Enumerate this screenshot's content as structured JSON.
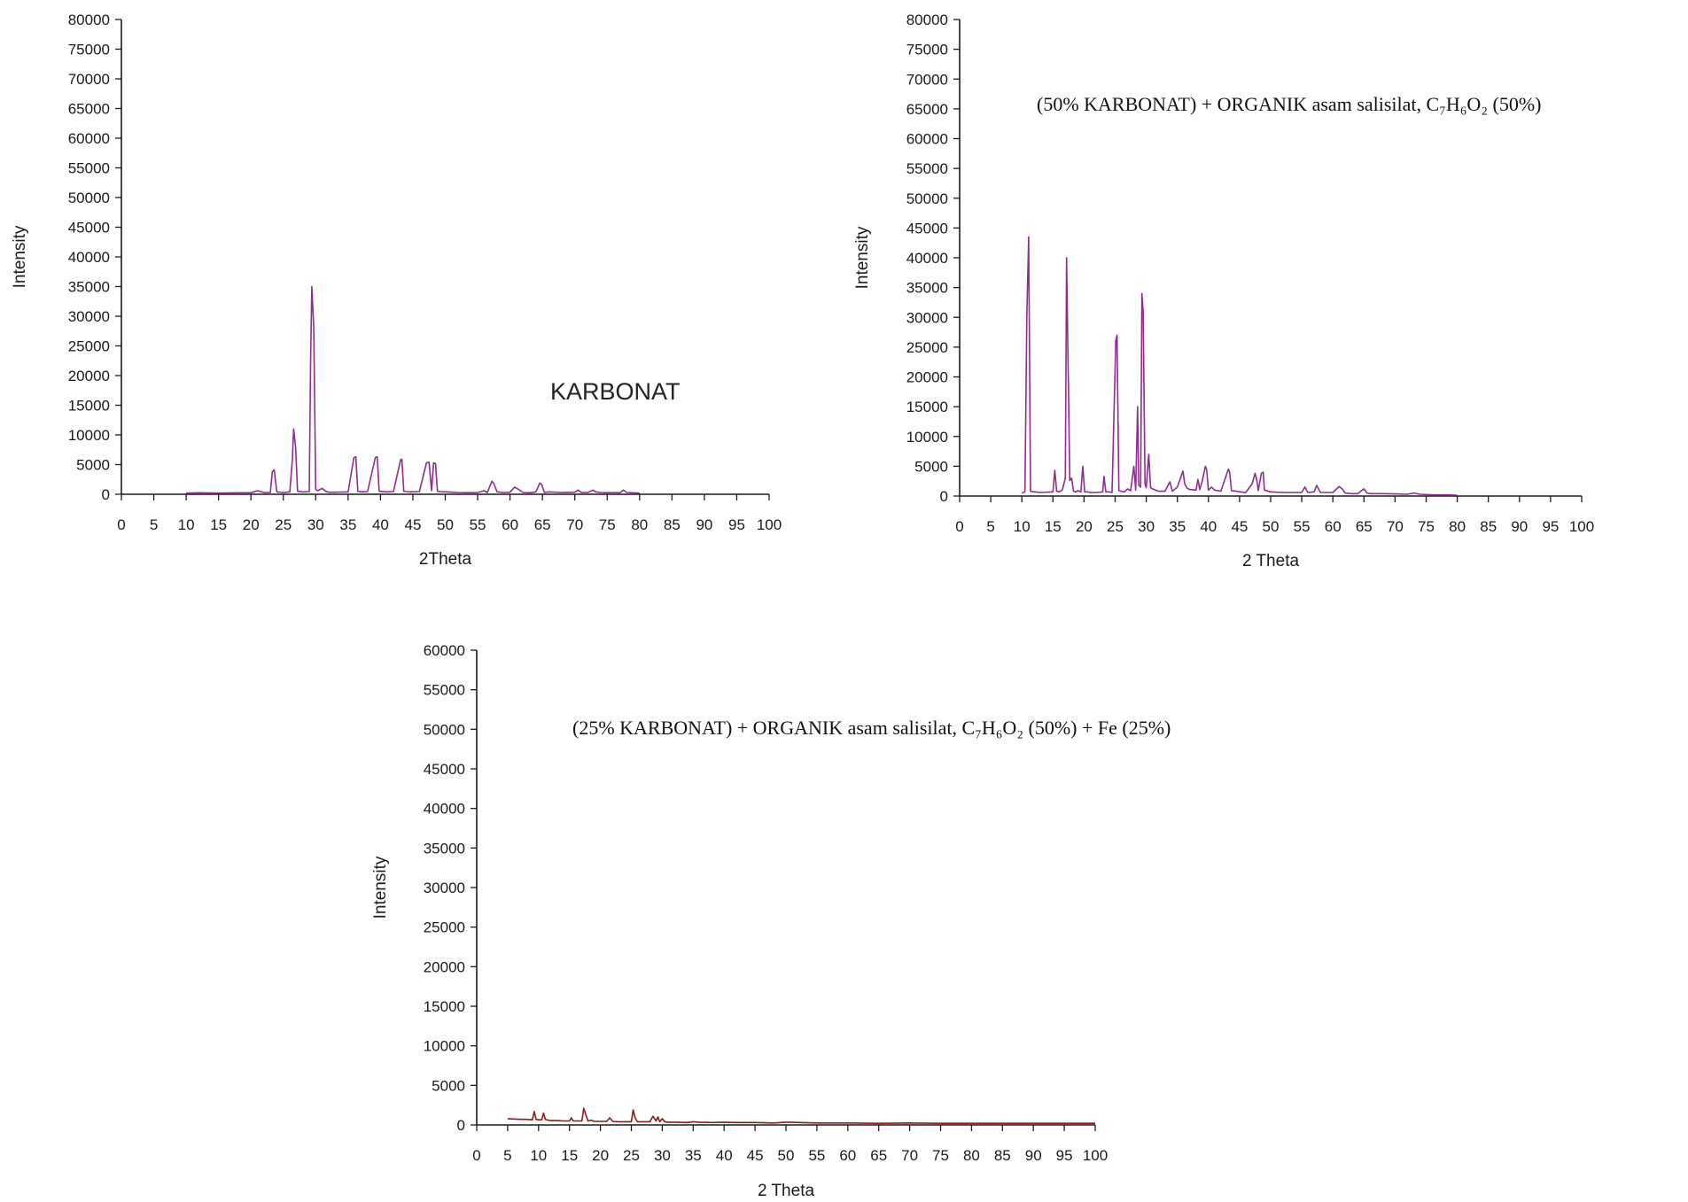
{
  "chart_data": [
    {
      "type": "line",
      "title": "",
      "annotation": "KARBONAT",
      "xlabel": "2Theta",
      "ylabel": "Intensity",
      "xlim": [
        0,
        100
      ],
      "ylim": [
        0,
        80000
      ],
      "xticks": [
        0,
        5,
        10,
        15,
        20,
        25,
        30,
        35,
        40,
        45,
        50,
        55,
        60,
        65,
        70,
        75,
        80,
        85,
        90,
        95,
        100
      ],
      "yticks": [
        0,
        5000,
        10000,
        15000,
        20000,
        25000,
        30000,
        35000,
        40000,
        45000,
        50000,
        55000,
        60000,
        65000,
        70000,
        75000,
        80000
      ],
      "color": "#8e2d8e",
      "series": [
        {
          "name": "KARBONAT",
          "x": [
            10,
            12,
            15,
            18,
            20,
            21,
            22,
            23,
            23.3,
            23.6,
            24,
            25,
            26,
            26.4,
            26.6,
            26.9,
            27.2,
            28,
            29,
            29.2,
            29.4,
            29.7,
            30,
            30.3,
            31,
            31.5,
            32,
            33,
            35,
            35.9,
            36.2,
            36.5,
            37,
            38,
            39.2,
            39.5,
            39.8,
            41,
            42,
            43.1,
            43.3,
            43.6,
            44,
            45,
            46,
            47.1,
            47.5,
            47.9,
            48.2,
            48.5,
            48.8,
            49.2,
            50,
            52,
            54,
            55,
            56,
            56.5,
            57.2,
            57.5,
            58,
            59,
            60,
            60.7,
            61.2,
            62,
            63,
            64,
            64.6,
            64.9,
            65.3,
            66,
            68,
            70,
            70.5,
            71,
            72,
            72.8,
            73.2,
            74,
            75,
            76,
            77,
            77.5,
            78,
            80
          ],
          "y": [
            200,
            250,
            200,
            250,
            250,
            600,
            300,
            300,
            3800,
            4100,
            400,
            300,
            400,
            6000,
            11000,
            8000,
            500,
            400,
            450,
            22000,
            35000,
            28000,
            800,
            600,
            1000,
            500,
            350,
            350,
            400,
            6200,
            6300,
            500,
            400,
            450,
            6200,
            6300,
            500,
            400,
            450,
            5800,
            5900,
            500,
            450,
            400,
            450,
            5300,
            5400,
            600,
            5300,
            5200,
            500,
            450,
            400,
            300,
            250,
            300,
            600,
            300,
            2200,
            1800,
            400,
            300,
            350,
            1200,
            900,
            300,
            250,
            400,
            1900,
            1600,
            300,
            400,
            300,
            350,
            700,
            300,
            300,
            700,
            400,
            300,
            250,
            300,
            250,
            700,
            300,
            200
          ]
        }
      ]
    },
    {
      "type": "line",
      "title": "",
      "annotation": "(50% KARBONAT) + ORGANIK asam salisilat, C₇H₆O₂ (50%)",
      "xlabel": "2 Theta",
      "ylabel": "Intensity",
      "xlim": [
        0,
        100
      ],
      "ylim": [
        0,
        80000
      ],
      "xticks": [
        0,
        5,
        10,
        15,
        20,
        25,
        30,
        35,
        40,
        45,
        50,
        55,
        60,
        65,
        70,
        75,
        80,
        85,
        90,
        95,
        100
      ],
      "yticks": [
        0,
        5000,
        10000,
        15000,
        20000,
        25000,
        30000,
        35000,
        40000,
        45000,
        50000,
        55000,
        60000,
        65000,
        70000,
        75000,
        80000
      ],
      "color": "#8e2d8e",
      "series": [
        {
          "name": "(50% KARBONAT) + ORGANIK asam salisilat, C7H6O2 (50%)",
          "x": [
            10,
            10.5,
            10.8,
            11.1,
            11.4,
            12,
            13,
            15,
            15.3,
            15.6,
            16,
            16.5,
            17,
            17.2,
            17.4,
            17.7,
            18,
            18.3,
            18.7,
            19,
            19.5,
            19.8,
            20.1,
            20.5,
            21,
            22,
            23,
            23.2,
            23.5,
            24,
            24.5,
            25.1,
            25.3,
            25.6,
            26,
            26.5,
            27,
            27.5,
            28,
            28.3,
            28.6,
            28.8,
            29.1,
            29.3,
            29.5,
            29.8,
            30,
            30.4,
            30.7,
            31,
            31.5,
            32,
            33,
            33.8,
            34.2,
            35,
            35.9,
            36.2,
            36.6,
            37,
            38,
            38.3,
            38.6,
            39,
            39.5,
            39.7,
            40,
            40.5,
            41,
            42,
            43.2,
            43.4,
            43.7,
            44.5,
            45,
            46,
            47,
            47.5,
            47.8,
            48,
            48.5,
            48.8,
            49,
            50,
            52,
            54,
            55,
            55.5,
            56,
            57,
            57.4,
            58,
            60,
            61,
            61.5,
            62,
            63,
            64,
            65,
            65.5,
            66,
            68,
            70,
            72,
            73,
            74,
            76,
            78,
            80
          ],
          "y": [
            500,
            700,
            30000,
            43500,
            800,
            700,
            600,
            700,
            4300,
            800,
            700,
            1000,
            3000,
            40000,
            25000,
            2600,
            3000,
            800,
            700,
            900,
            700,
            5000,
            700,
            700,
            600,
            600,
            700,
            3300,
            700,
            700,
            600,
            26000,
            27000,
            900,
            800,
            700,
            1200,
            900,
            5000,
            1000,
            15000,
            1800,
            1500,
            34000,
            31000,
            2000,
            1400,
            7000,
            1400,
            1200,
            1000,
            800,
            800,
            2400,
            800,
            1500,
            4200,
            2000,
            1300,
            1100,
            1000,
            2800,
            1100,
            2500,
            5000,
            4500,
            1000,
            1500,
            1000,
            800,
            4500,
            4000,
            900,
            800,
            700,
            600,
            2000,
            3800,
            2500,
            900,
            3800,
            4000,
            1000,
            700,
            600,
            600,
            600,
            1500,
            600,
            700,
            1800,
            600,
            600,
            1600,
            1200,
            500,
            400,
            400,
            1200,
            500,
            400,
            400,
            350,
            300,
            500,
            300,
            200,
            200,
            150
          ]
        }
      ]
    },
    {
      "type": "line",
      "title": "",
      "annotation": "(25% KARBONAT) + ORGANIK asam salisilat, C₇H₆O₂ (50%) + Fe (25%)",
      "xlabel": "2 Theta",
      "ylabel": "Intensity",
      "xlim": [
        0,
        100
      ],
      "ylim": [
        0,
        60000
      ],
      "xticks": [
        0,
        5,
        10,
        15,
        20,
        25,
        30,
        35,
        40,
        45,
        50,
        55,
        60,
        65,
        70,
        75,
        80,
        85,
        90,
        95,
        100
      ],
      "yticks": [
        0,
        5000,
        10000,
        15000,
        20000,
        25000,
        30000,
        35000,
        40000,
        45000,
        50000,
        55000,
        60000
      ],
      "color": "#8b1a1a",
      "series": [
        {
          "name": "(25% KARBONAT) + ORGANIK asam salisilat, C7H6O2 (50%) + Fe (25%)",
          "x": [
            5,
            6,
            7,
            8,
            9,
            9.3,
            9.6,
            10,
            10.5,
            10.8,
            11.1,
            11.5,
            12,
            13,
            14,
            15,
            15.3,
            15.6,
            16,
            17,
            17.3,
            17.6,
            18,
            18.5,
            19,
            20,
            21,
            21.5,
            22,
            23,
            24,
            25,
            25.3,
            25.6,
            26,
            27,
            28,
            28.5,
            29,
            29.3,
            29.6,
            30,
            30.4,
            31,
            32,
            34,
            35,
            36,
            38,
            40,
            42,
            45,
            48,
            50,
            55,
            60,
            65,
            70,
            75,
            80,
            85,
            90,
            95,
            100
          ],
          "y": [
            800,
            750,
            700,
            700,
            650,
            1700,
            700,
            650,
            650,
            1500,
            700,
            600,
            550,
            550,
            500,
            500,
            900,
            500,
            500,
            500,
            2100,
            1400,
            500,
            600,
            450,
            450,
            450,
            900,
            450,
            400,
            400,
            400,
            1900,
            900,
            400,
            400,
            400,
            1100,
            500,
            1000,
            400,
            800,
            400,
            350,
            350,
            300,
            400,
            350,
            300,
            350,
            300,
            300,
            250,
            350,
            250,
            250,
            200,
            250,
            200,
            200,
            200,
            200,
            200,
            200
          ]
        }
      ]
    }
  ]
}
